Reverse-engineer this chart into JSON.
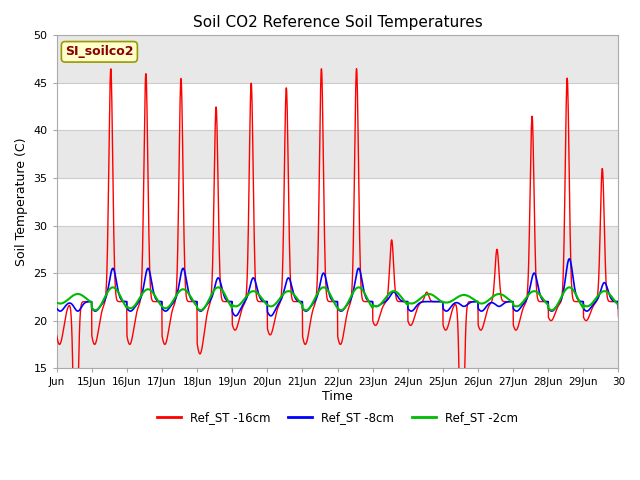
{
  "title": "Soil CO2 Reference Soil Temperatures",
  "ylabel": "Soil Temperature (C)",
  "xlabel": "Time",
  "ylim": [
    15,
    50
  ],
  "yticks": [
    15,
    20,
    25,
    30,
    35,
    40,
    45,
    50
  ],
  "label_box_text": "SI_soilco2",
  "legend_labels": [
    "Ref_ST -16cm",
    "Ref_ST -8cm",
    "Ref_ST -2cm"
  ],
  "line_colors": [
    "#ff0000",
    "#0000ff",
    "#00bb00"
  ],
  "background_color": "#ffffff",
  "plot_bg_color": "#ffffff",
  "band_colors": [
    "#ffffff",
    "#e8e8e8"
  ],
  "x_start_day": 14.0,
  "x_end_day": 30.0,
  "x_tick_days": [
    14,
    15,
    16,
    17,
    18,
    19,
    20,
    21,
    22,
    23,
    24,
    25,
    26,
    27,
    28,
    29,
    30
  ],
  "x_tick_labels": [
    "Jun",
    "15Jun",
    "16Jun",
    "17Jun",
    "18Jun",
    "19Jun",
    "20Jun",
    "21Jun",
    "22Jun",
    "23Jun",
    "24Jun",
    "25Jun",
    "26Jun",
    "27Jun",
    "28Jun",
    "29Jun",
    "30"
  ],
  "red_peaks": [
    0,
    46.5,
    46,
    45.5,
    42.5,
    45,
    44.5,
    46.5,
    46.5,
    28.5,
    23,
    0,
    27.5,
    41.5,
    45.5,
    36,
    0
  ],
  "red_troughs": [
    17.5,
    17.5,
    17.5,
    17.5,
    16.5,
    19,
    18.5,
    17.5,
    17.5,
    19.5,
    19.5,
    19,
    19,
    19,
    20,
    20,
    22
  ],
  "blue_peaks": [
    21,
    25.5,
    25.5,
    25.5,
    24.5,
    24.5,
    24.5,
    25,
    25.5,
    23,
    22,
    21.5,
    21.5,
    25,
    26.5,
    24,
    24
  ],
  "blue_troughs": [
    21,
    21,
    21,
    21,
    21,
    20.5,
    20.5,
    21,
    21,
    21.5,
    21,
    21,
    21,
    21,
    21,
    21,
    22
  ],
  "green_base": 22.3,
  "green_amp": [
    0.5,
    1.2,
    1.0,
    1.0,
    1.2,
    0.8,
    0.8,
    1.2,
    1.2,
    0.8,
    0.5,
    0.4,
    0.5,
    0.8,
    1.2,
    0.8,
    0.5
  ]
}
